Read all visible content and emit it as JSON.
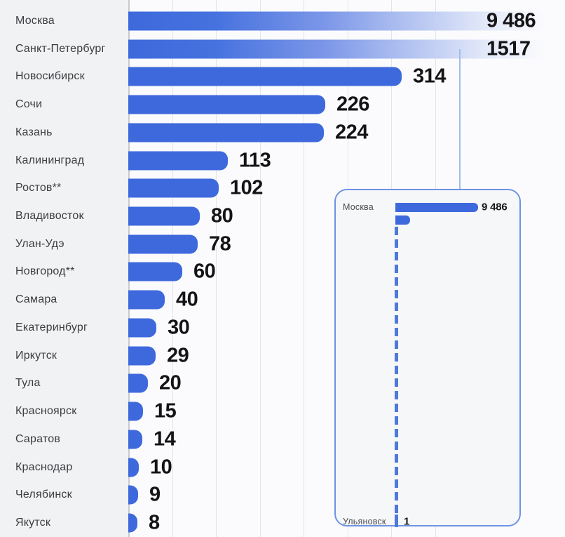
{
  "chart_data": {
    "type": "bar",
    "orientation": "horizontal",
    "title": "",
    "xlabel": "",
    "ylabel": "",
    "grid": "vertical-lines",
    "rows": [
      {
        "label": "Москва",
        "value": 9486,
        "value_label": "9 486",
        "overflow": true
      },
      {
        "label": "Санкт-Петербург",
        "value": 1517,
        "value_label": "1517",
        "overflow": true
      },
      {
        "label": "Новосибирск",
        "value": 314,
        "value_label": "314",
        "overflow": false
      },
      {
        "label": "Сочи",
        "value": 226,
        "value_label": "226",
        "overflow": false
      },
      {
        "label": "Казань",
        "value": 224,
        "value_label": "224",
        "overflow": false
      },
      {
        "label": "Калининград",
        "value": 113,
        "value_label": "113",
        "overflow": false
      },
      {
        "label": "Ростов**",
        "value": 102,
        "value_label": "102",
        "overflow": false
      },
      {
        "label": "Владивосток",
        "value": 80,
        "value_label": "80",
        "overflow": false
      },
      {
        "label": "Улан-Удэ",
        "value": 78,
        "value_label": "78",
        "overflow": false
      },
      {
        "label": "Новгород**",
        "value": 60,
        "value_label": "60",
        "overflow": false
      },
      {
        "label": "Самара",
        "value": 40,
        "value_label": "40",
        "overflow": false
      },
      {
        "label": "Екатеринбург",
        "value": 30,
        "value_label": "30",
        "overflow": false
      },
      {
        "label": "Иркутск",
        "value": 29,
        "value_label": "29",
        "overflow": false
      },
      {
        "label": "Тула",
        "value": 20,
        "value_label": "20",
        "overflow": false
      },
      {
        "label": "Красноярск",
        "value": 15,
        "value_label": "15",
        "overflow": false
      },
      {
        "label": "Саратов",
        "value": 14,
        "value_label": "14",
        "overflow": false
      },
      {
        "label": "Краснодар",
        "value": 10,
        "value_label": "10",
        "overflow": false
      },
      {
        "label": "Челябинск",
        "value": 9,
        "value_label": "9",
        "overflow": false
      },
      {
        "label": "Якутск",
        "value": 8,
        "value_label": "8",
        "overflow": false
      }
    ],
    "inset": {
      "description": "zoomed-out full-scale view of same data",
      "top_label": "Москва",
      "top_value": 9486,
      "top_value_label": "9 486",
      "second_value": 1517,
      "bottom_label": "Ульяновск",
      "bottom_value": 1,
      "bottom_value_label": "1"
    },
    "colors": {
      "bar": "#3d69dc",
      "bar_gradient_fade_to": "#fbfbfd",
      "gridline": "#e2e4e9",
      "axis": "#c7cad1",
      "label_text": "#3c3d40",
      "value_text": "#141416",
      "inset_border": "#6e93e3",
      "inset_dash": "#4d79d8",
      "leader_line": "#a3bcec",
      "background": "#f1f2f4",
      "plot_background": "#fbfbfd"
    }
  }
}
